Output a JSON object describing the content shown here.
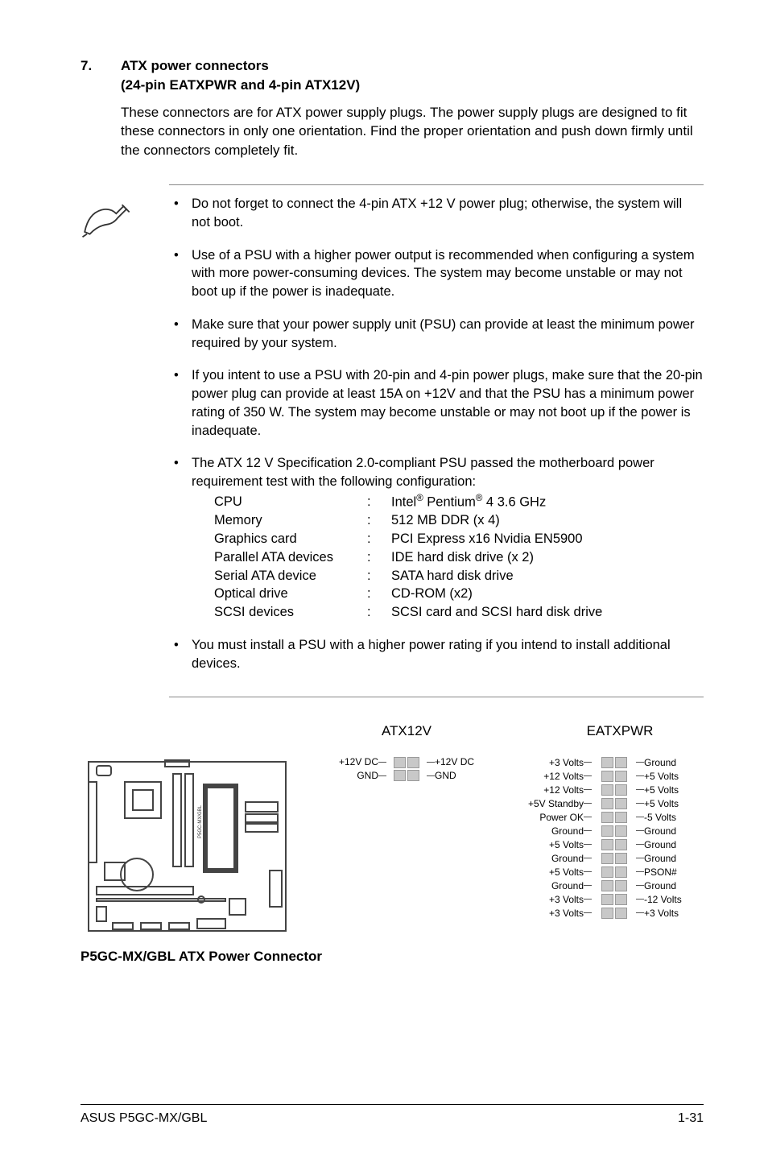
{
  "header": {
    "number": "7.",
    "title_line1": "ATX power connectors",
    "title_line2": "(24-pin EATXPWR and 4-pin ATX12V)"
  },
  "intro": "These connectors are for ATX power supply plugs. The power supply plugs are designed to fit these connectors in only one orientation. Find the proper orientation and push down firmly until the connectors completely fit.",
  "notes": [
    "Do not forget to connect the 4-pin ATX +12 V power plug; otherwise, the system will not boot.",
    "Use of a PSU with a higher power output is recommended when configuring a system with more power-consuming devices. The system may become unstable or may not boot up if the power is inadequate.",
    "Make sure that your power supply unit (PSU) can provide at least the minimum power required by your system.",
    "If you intent to use a PSU with 20-pin and 4-pin power plugs, make sure that the 20-pin power plug can provide at least 15A on +12V and that the PSU has a minimum power rating of 350 W. The system may become unstable or may not boot up if the power is inadequate.",
    "The ATX 12 V Specification 2.0-compliant PSU passed the motherboard power requirement test with the following configuration:"
  ],
  "specs": [
    {
      "label": "CPU",
      "value_prefix": "Intel",
      "value_mid": " Pentium",
      "value_suffix": " 4 3.6 GHz",
      "reg": true
    },
    {
      "label": "Memory",
      "value": "512 MB DDR (x 4)"
    },
    {
      "label": "Graphics card",
      "value": "PCI Express x16 Nvidia EN5900"
    },
    {
      "label": "Parallel ATA devices",
      "value": "IDE hard disk drive (x 2)"
    },
    {
      "label": "Serial ATA device",
      "value": "SATA hard disk drive"
    },
    {
      "label": "Optical drive",
      "value": "CD-ROM (x2)"
    },
    {
      "label": "SCSI devices",
      "value": "SCSI card and SCSI hard disk drive"
    }
  ],
  "last_note": "You must install a PSU with a higher power rating if you intend to install additional devices.",
  "diagram": {
    "atx12v_title": "ATX12V",
    "eatxpwr_title": "EATXPWR",
    "board_caption": "P5GC-MX/GBL ATX Power Connector",
    "atx12v_pins": [
      {
        "left": "+12V DC",
        "right": "+12V DC"
      },
      {
        "left": "GND",
        "right": "GND"
      }
    ],
    "eatxpwr_pins": [
      {
        "left": "+3 Volts",
        "right": "Ground"
      },
      {
        "left": "+12 Volts",
        "right": "+5 Volts"
      },
      {
        "left": "+12 Volts",
        "right": "+5 Volts"
      },
      {
        "left": "+5V Standby",
        "right": "+5 Volts"
      },
      {
        "left": "Power OK",
        "right": "-5 Volts"
      },
      {
        "left": "Ground",
        "right": "Ground"
      },
      {
        "left": "+5 Volts",
        "right": "Ground"
      },
      {
        "left": "Ground",
        "right": "Ground"
      },
      {
        "left": "+5 Volts",
        "right": "PSON#"
      },
      {
        "left": "Ground",
        "right": "Ground"
      },
      {
        "left": "+3 Volts",
        "right": "-12 Volts"
      },
      {
        "left": "+3 Volts",
        "right": "+3 Volts"
      }
    ]
  },
  "footer": {
    "left": "ASUS P5GC-MX/GBL",
    "right": "1-31"
  },
  "colors": {
    "text": "#000000",
    "rule": "#888888",
    "pin_fill": "#c8c8c8",
    "pin_border": "#999999",
    "board_stroke": "#444444"
  }
}
